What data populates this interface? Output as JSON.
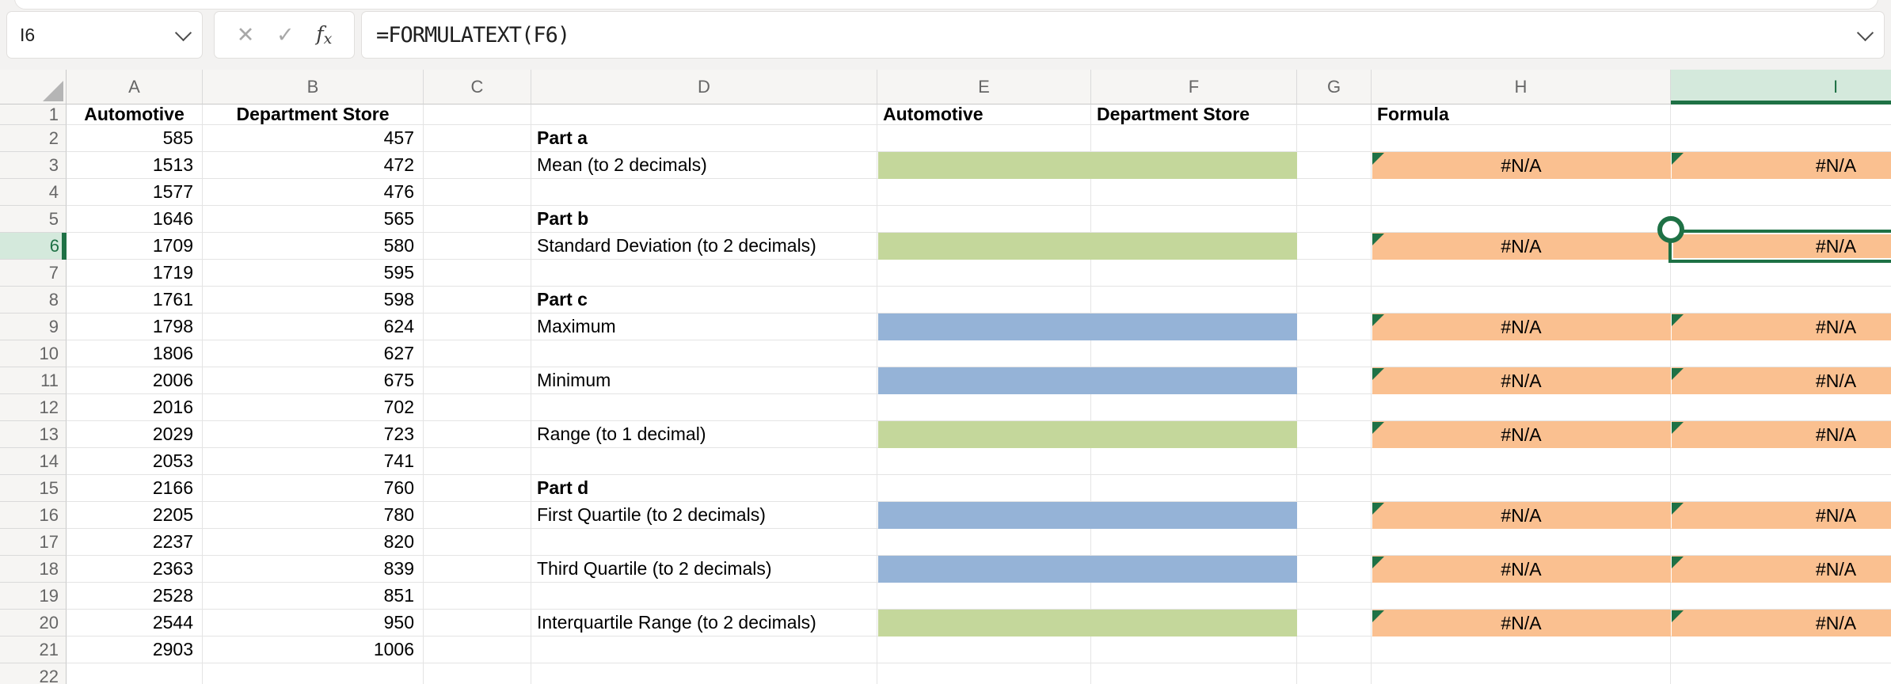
{
  "formula_bar": {
    "name_box": "I6",
    "formula": "=FORMULATEXT(F6)",
    "cancel_icon": "✕",
    "enter_icon": "✓",
    "fx_icon": "fx"
  },
  "colors": {
    "selection_green": "#1e7145",
    "selected_header_bg": "#d4e9dc",
    "fill_green": "#c4d79b",
    "fill_blue": "#95b3d7",
    "fill_orange": "#fac090",
    "chrome_bg": "#f3f2f1"
  },
  "sheet": {
    "selected_cell": "I6",
    "selected_column": "I",
    "selected_row": 6,
    "error_value": "#N/A",
    "column_letters": [
      "A",
      "B",
      "C",
      "D",
      "E",
      "F",
      "G",
      "H",
      "I"
    ],
    "row1": {
      "A": "Automotive",
      "B": "Department Store",
      "E": "Automotive",
      "F": "Department Store",
      "H": "Formula"
    },
    "rows": [
      {
        "n": 2,
        "a": "585",
        "b": "457",
        "d": "Part a",
        "db": true,
        "ef": null,
        "na": false
      },
      {
        "n": 3,
        "a": "1513",
        "b": "472",
        "d": "Mean (to 2 decimals)",
        "db": false,
        "ef": "green",
        "na": true
      },
      {
        "n": 4,
        "a": "1577",
        "b": "476",
        "d": "",
        "db": false,
        "ef": null,
        "na": false
      },
      {
        "n": 5,
        "a": "1646",
        "b": "565",
        "d": "Part b",
        "db": true,
        "ef": null,
        "na": false
      },
      {
        "n": 6,
        "a": "1709",
        "b": "580",
        "d": "Standard Deviation (to 2 decimals)",
        "db": false,
        "ef": "green",
        "na": true
      },
      {
        "n": 7,
        "a": "1719",
        "b": "595",
        "d": "",
        "db": false,
        "ef": null,
        "na": false
      },
      {
        "n": 8,
        "a": "1761",
        "b": "598",
        "d": "Part c",
        "db": true,
        "ef": null,
        "na": false
      },
      {
        "n": 9,
        "a": "1798",
        "b": "624",
        "d": "Maximum",
        "db": false,
        "ef": "blue",
        "na": true
      },
      {
        "n": 10,
        "a": "1806",
        "b": "627",
        "d": "",
        "db": false,
        "ef": null,
        "na": false
      },
      {
        "n": 11,
        "a": "2006",
        "b": "675",
        "d": "Minimum",
        "db": false,
        "ef": "blue",
        "na": true
      },
      {
        "n": 12,
        "a": "2016",
        "b": "702",
        "d": "",
        "db": false,
        "ef": null,
        "na": false
      },
      {
        "n": 13,
        "a": "2029",
        "b": "723",
        "d": "Range (to 1 decimal)",
        "db": false,
        "ef": "green",
        "na": true
      },
      {
        "n": 14,
        "a": "2053",
        "b": "741",
        "d": "",
        "db": false,
        "ef": null,
        "na": false
      },
      {
        "n": 15,
        "a": "2166",
        "b": "760",
        "d": "Part d",
        "db": true,
        "ef": null,
        "na": false
      },
      {
        "n": 16,
        "a": "2205",
        "b": "780",
        "d": "First Quartile (to 2 decimals)",
        "db": false,
        "ef": "blue",
        "na": true
      },
      {
        "n": 17,
        "a": "2237",
        "b": "820",
        "d": "",
        "db": false,
        "ef": null,
        "na": false
      },
      {
        "n": 18,
        "a": "2363",
        "b": "839",
        "d": "Third Quartile (to 2 decimals)",
        "db": false,
        "ef": "blue",
        "na": true
      },
      {
        "n": 19,
        "a": "2528",
        "b": "851",
        "d": "",
        "db": false,
        "ef": null,
        "na": false
      },
      {
        "n": 20,
        "a": "2544",
        "b": "950",
        "d": "Interquartile Range (to 2 decimals)",
        "db": false,
        "ef": "green",
        "na": true
      },
      {
        "n": 21,
        "a": "2903",
        "b": "1006",
        "d": "",
        "db": false,
        "ef": null,
        "na": false
      },
      {
        "n": 22,
        "a": "",
        "b": "",
        "d": "",
        "db": false,
        "ef": null,
        "na": false
      }
    ]
  }
}
